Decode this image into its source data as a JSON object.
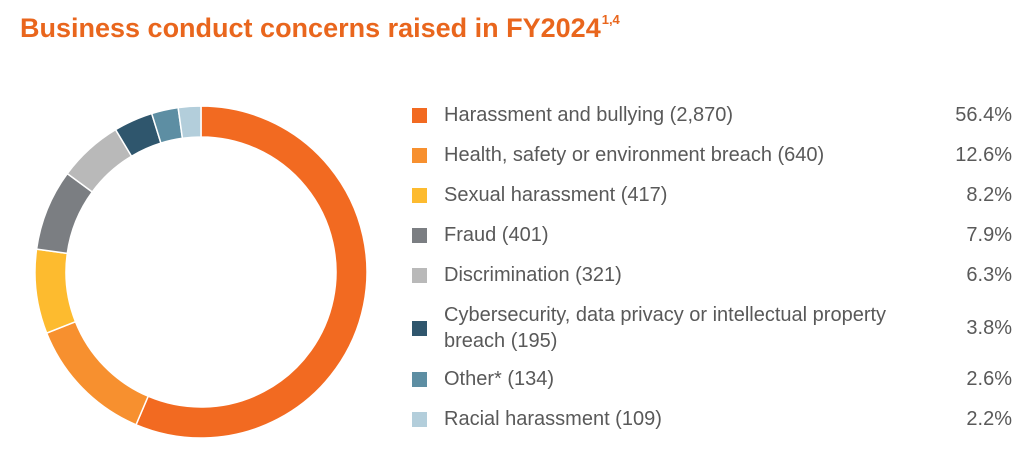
{
  "title": {
    "text": "Business conduct concerns raised in FY2024",
    "superscript": "1,4"
  },
  "chart_data": {
    "type": "pie",
    "donut": true,
    "title": "Business conduct concerns raised in FY2024",
    "unit": "%",
    "legend_position": "right",
    "series": [
      {
        "label": "Harassment and bullying (2,870)",
        "count": 2870,
        "value": 56.4,
        "pct_label": "56.4%",
        "color": "#f26a21"
      },
      {
        "label": "Health, safety or environment breach (640)",
        "count": 640,
        "value": 12.6,
        "pct_label": "12.6%",
        "color": "#f7902f"
      },
      {
        "label": "Sexual harassment (417)",
        "count": 417,
        "value": 8.2,
        "pct_label": "8.2%",
        "color": "#fdbb2f"
      },
      {
        "label": "Fraud (401)",
        "count": 401,
        "value": 7.9,
        "pct_label": "7.9%",
        "color": "#7b7e82"
      },
      {
        "label": "Discrimination (321)",
        "count": 321,
        "value": 6.3,
        "pct_label": "6.3%",
        "color": "#b9b9b9"
      },
      {
        "label": "Cybersecurity, data privacy or intellectual property breach (195)",
        "count": 195,
        "value": 3.8,
        "pct_label": "3.8%",
        "color": "#2f566d"
      },
      {
        "label": "Other* (134)",
        "count": 134,
        "value": 2.6,
        "pct_label": "2.6%",
        "color": "#5d8ea3"
      },
      {
        "label": "Racial harassment (109)",
        "count": 109,
        "value": 2.2,
        "pct_label": "2.2%",
        "color": "#b3cedb"
      }
    ]
  }
}
